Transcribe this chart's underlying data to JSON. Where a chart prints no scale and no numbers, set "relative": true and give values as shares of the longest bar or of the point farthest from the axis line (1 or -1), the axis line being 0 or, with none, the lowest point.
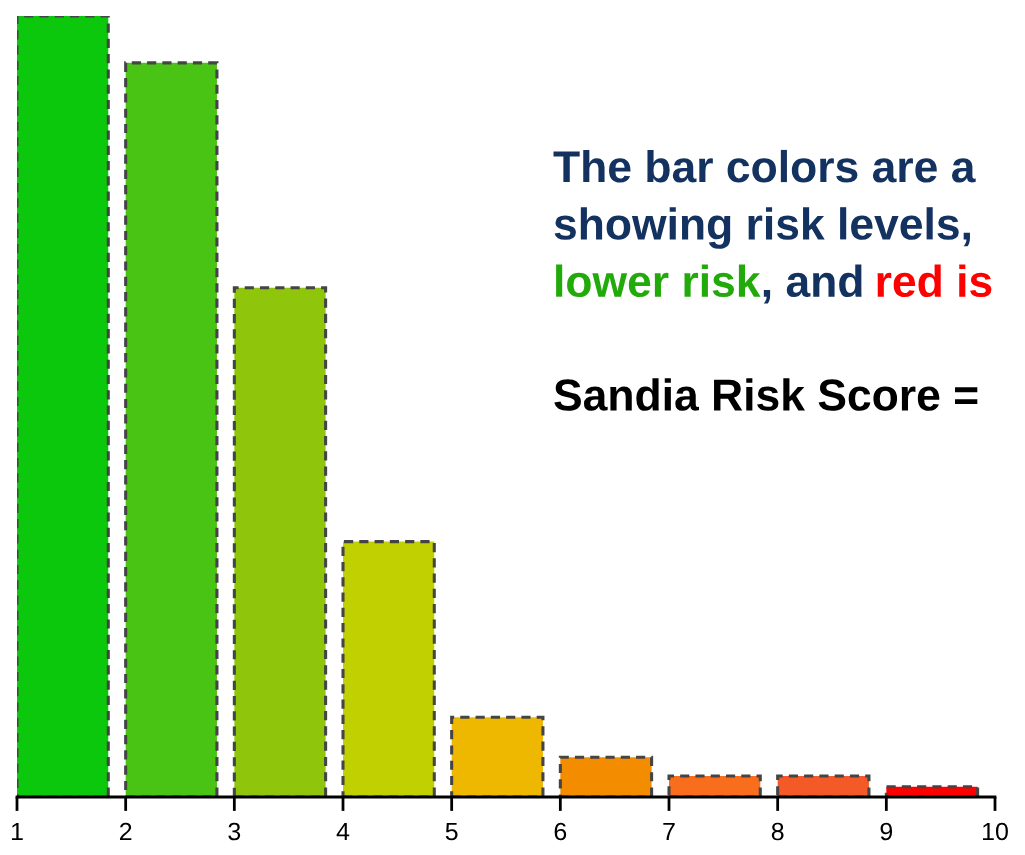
{
  "chart_data": {
    "type": "bar",
    "relative": true,
    "x": [
      1.42,
      2.42,
      3.42,
      4.42,
      5.42,
      6.42,
      7.42,
      8.42,
      9.42
    ],
    "values": [
      1,
      0.94,
      0.652,
      0.327,
      0.102,
      0.051,
      0.027,
      0.027,
      0.013
    ],
    "colors": [
      "#0cc80c",
      "#4ac414",
      "#8fc60c",
      "#c0d000",
      "#efb800",
      "#f48c00",
      "#f86e1c",
      "#f45a28",
      "#ff0000"
    ],
    "xlim": [
      1,
      10
    ],
    "xticks": [
      1,
      2,
      3,
      4,
      5,
      6,
      7,
      8,
      9,
      10
    ],
    "annotations": [
      "The bar colors are a",
      "showing risk levels,",
      "lower risk",
      ", and",
      "red is",
      "Sandia Risk Score ="
    ],
    "grid": false,
    "legend": false
  }
}
